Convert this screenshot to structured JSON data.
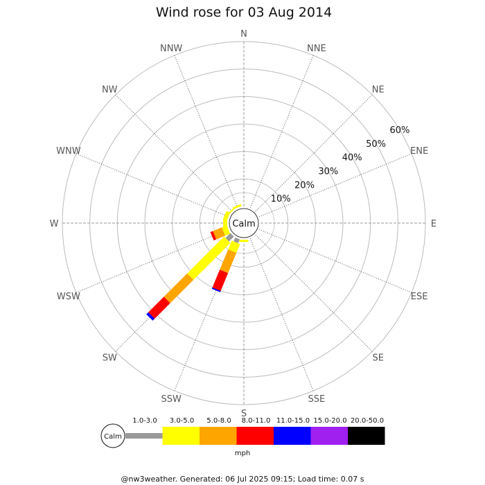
{
  "chart_data": {
    "type": "wind-rose",
    "title": "Wind rose for 03 Aug 2014",
    "directions": [
      "N",
      "NNE",
      "NE",
      "ENE",
      "E",
      "ESE",
      "SE",
      "SSE",
      "S",
      "SSW",
      "SW",
      "WSW",
      "W",
      "WNW",
      "NW",
      "NNW"
    ],
    "ring_labels": [
      "10%",
      "20%",
      "30%",
      "40%",
      "50%",
      "60%"
    ],
    "ring_values": [
      10,
      20,
      30,
      40,
      50,
      60
    ],
    "rmax": 60,
    "calm_label": "Calm",
    "speed_bins": [
      "1.0-3.0",
      "3.0-5.0",
      "5.0-8.0",
      "8.0-11.0",
      "11.0-15.0",
      "15.0-20.0",
      "20.0-50.0"
    ],
    "speed_unit": "mph",
    "bin_colors": [
      "#999999",
      "#ffff00",
      "#ffa500",
      "#ff0000",
      "#0000ff",
      "#a020f0",
      "#000000"
    ],
    "series": [
      {
        "direction": "SSW",
        "values": [
          1.5,
          3.5,
          8,
          7,
          0.5,
          0,
          0
        ]
      },
      {
        "direction": "SW",
        "values": [
          2.5,
          19,
          12,
          8,
          1,
          0,
          0
        ]
      },
      {
        "direction": "WSW",
        "values": [
          0,
          2,
          3.5,
          1,
          0,
          0,
          0
        ]
      },
      {
        "direction": "W",
        "values": [
          0,
          1.5,
          0,
          0,
          0,
          0,
          0
        ]
      },
      {
        "direction": "WNW",
        "values": [
          0,
          1.5,
          0,
          0,
          0,
          0,
          0
        ]
      },
      {
        "direction": "NW",
        "values": [
          0,
          0.5,
          0,
          0,
          0,
          0,
          0
        ]
      },
      {
        "direction": "NNW",
        "values": [
          0,
          0.8,
          0,
          0,
          0,
          0,
          0
        ]
      },
      {
        "direction": "S",
        "values": [
          0,
          0.8,
          0,
          0,
          0,
          0,
          0
        ]
      }
    ],
    "footer": "@nw3weather. Generated: 06 Jul 2025 09:15; Load time: 0.07 s"
  }
}
